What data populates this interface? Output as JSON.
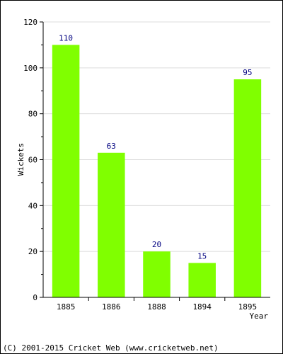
{
  "chart_data": {
    "type": "bar",
    "categories": [
      "1885",
      "1886",
      "1888",
      "1894",
      "1895"
    ],
    "values": [
      110,
      63,
      20,
      15,
      95
    ],
    "title": "",
    "xlabel": "Year",
    "ylabel": "Wickets",
    "ylim": [
      0,
      120
    ],
    "yticks": [
      0,
      20,
      40,
      60,
      80,
      100,
      120
    ],
    "grid": true,
    "bar_color": "#80ff00",
    "label_color": "#000080"
  },
  "footer": {
    "copyright": "(C) 2001-2015 Cricket Web (www.cricketweb.net)"
  }
}
